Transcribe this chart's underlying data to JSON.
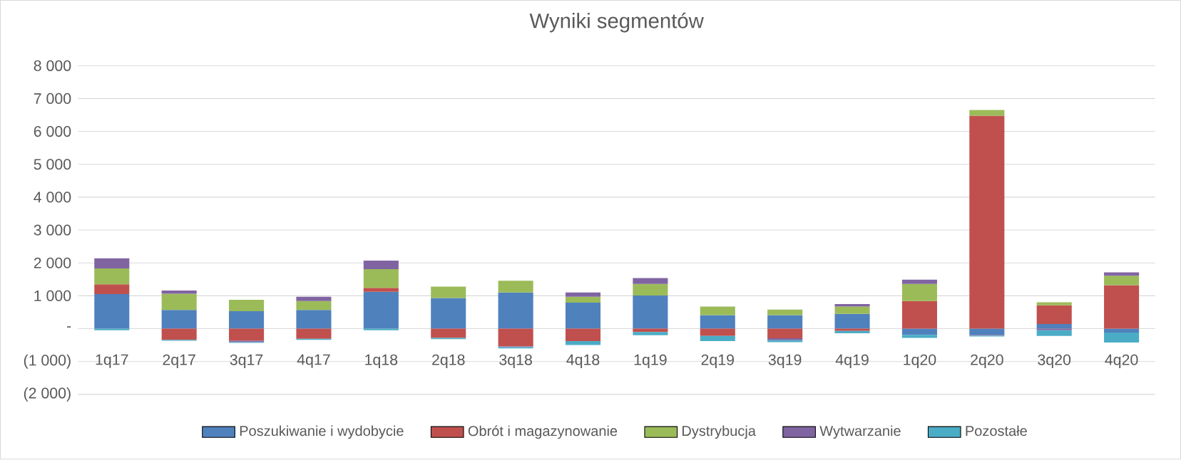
{
  "chart_data": {
    "type": "bar",
    "title": "Wyniki segmentów",
    "stacked": true,
    "grid": "y",
    "legend": "bottom",
    "categories": [
      "1q17",
      "2q17",
      "3q17",
      "4q17",
      "1q18",
      "2q18",
      "3q18",
      "4q18",
      "1q19",
      "2q19",
      "3q19",
      "4q19",
      "1q20",
      "2q20",
      "3q20",
      "4q20"
    ],
    "ylim": [
      -2000,
      8000
    ],
    "yticks": [
      {
        "value": -2000,
        "label": "(2 000)"
      },
      {
        "value": -1000,
        "label": "(1 000)"
      },
      {
        "value": 0,
        "label": "-"
      },
      {
        "value": 1000,
        "label": "1 000"
      },
      {
        "value": 2000,
        "label": "2 000"
      },
      {
        "value": 3000,
        "label": "3 000"
      },
      {
        "value": 4000,
        "label": "4 000"
      },
      {
        "value": 5000,
        "label": "5 000"
      },
      {
        "value": 6000,
        "label": "6 000"
      },
      {
        "value": 7000,
        "label": "7 000"
      },
      {
        "value": 8000,
        "label": "8 000"
      }
    ],
    "series": [
      {
        "name": "Poszukiwanie i wydobycie",
        "color": "#4f81bd",
        "values": [
          1050,
          570,
          530,
          570,
          1120,
          930,
          1100,
          790,
          1010,
          410,
          410,
          450,
          -190,
          -190,
          140,
          -120
        ]
      },
      {
        "name": "Obrót i magazynowanie",
        "color": "#c0504d",
        "values": [
          300,
          -340,
          -370,
          -310,
          120,
          -280,
          -540,
          -380,
          -100,
          -220,
          -290,
          -70,
          840,
          6480,
          570,
          1320
        ]
      },
      {
        "name": "Dystrybucja",
        "color": "#9bbb59",
        "values": [
          480,
          490,
          350,
          270,
          570,
          350,
          360,
          180,
          350,
          260,
          170,
          220,
          520,
          170,
          90,
          290
        ]
      },
      {
        "name": "Wytwarzanie",
        "color": "#8064a2",
        "values": [
          310,
          100,
          -40,
          130,
          260,
          null,
          -20,
          130,
          180,
          null,
          -60,
          80,
          130,
          -20,
          -50,
          100
        ]
      },
      {
        "name": "Pozostałe",
        "color": "#4bacc6",
        "values": [
          -50,
          -30,
          -20,
          -30,
          -50,
          -40,
          -40,
          -120,
          -100,
          -160,
          -60,
          -70,
          -90,
          -30,
          -170,
          -300
        ]
      }
    ]
  }
}
